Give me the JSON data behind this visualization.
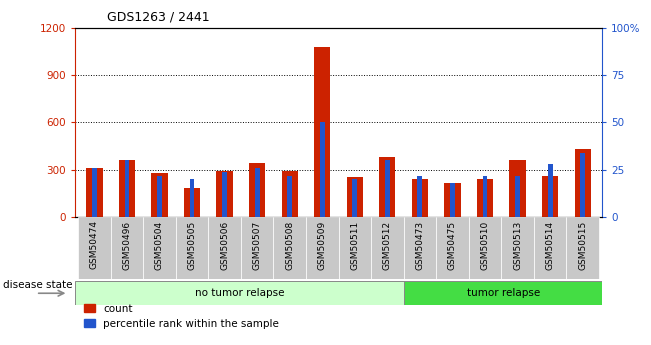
{
  "title": "GDS1263 / 2441",
  "samples": [
    "GSM50474",
    "GSM50496",
    "GSM50504",
    "GSM50505",
    "GSM50506",
    "GSM50507",
    "GSM50508",
    "GSM50509",
    "GSM50511",
    "GSM50512",
    "GSM50473",
    "GSM50475",
    "GSM50510",
    "GSM50513",
    "GSM50514",
    "GSM50515"
  ],
  "count_values": [
    310,
    360,
    280,
    185,
    290,
    345,
    295,
    1080,
    255,
    380,
    240,
    220,
    240,
    360,
    260,
    430
  ],
  "percentile_values": [
    26,
    30,
    22,
    20,
    24,
    26,
    22,
    50,
    20,
    30,
    22,
    18,
    22,
    22,
    28,
    34
  ],
  "no_tumor_count": 10,
  "tumor_count": 6,
  "left_label": "no tumor relapse",
  "right_label": "tumor relapse",
  "group_label": "disease state",
  "legend_count": "count",
  "legend_percentile": "percentile rank within the sample",
  "ylim_left": [
    0,
    1200
  ],
  "ylim_right": [
    0,
    100
  ],
  "yticks_left": [
    0,
    300,
    600,
    900,
    1200
  ],
  "yticks_right": [
    0,
    25,
    50,
    75,
    100
  ],
  "ytick_labels_left": [
    "0",
    "300",
    "600",
    "900",
    "1200"
  ],
  "ytick_labels_right": [
    "0",
    "25",
    "50",
    "75",
    "100%"
  ],
  "bar_color_count": "#cc2200",
  "bar_color_percentile": "#2255cc",
  "no_tumor_bg": "#ccffcc",
  "tumor_bg": "#44dd44",
  "bar_width": 0.5,
  "percentile_bar_width": 0.15,
  "xtick_bg": "#c8c8c8"
}
